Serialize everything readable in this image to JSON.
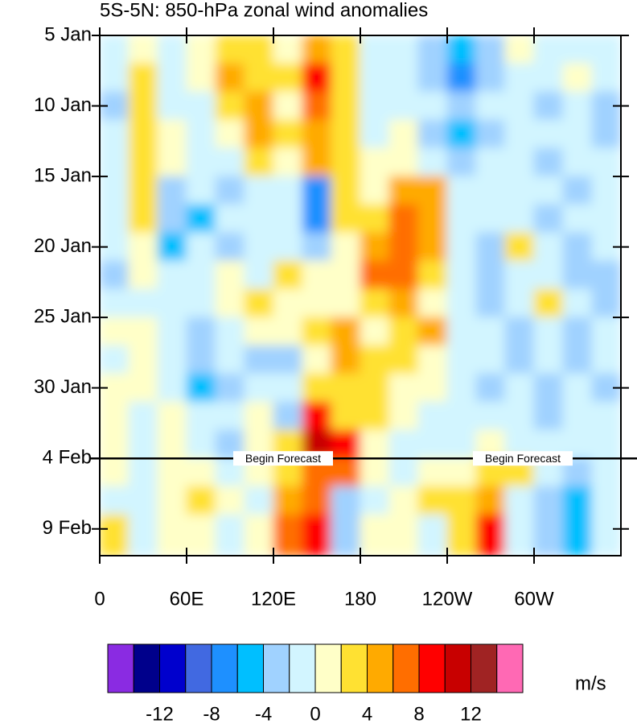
{
  "chart_data": {
    "type": "heatmap",
    "title": "5S-5N: 850-hPa zonal wind anomalies",
    "xlim": [
      0,
      360
    ],
    "xticks": [
      0,
      {
        "value": 60,
        "label": "60E"
      },
      {
        "value": 120,
        "label": "120E"
      },
      {
        "value": 180,
        "label": "180"
      },
      {
        "value": 240,
        "label": "120W"
      },
      {
        "value": 300,
        "label": "60W"
      }
    ],
    "ylim": [
      5,
      41.9
    ],
    "yticks": [
      {
        "value": 5,
        "label": "5 Jan"
      },
      {
        "value": 10,
        "label": "10 Jan"
      },
      {
        "value": 15,
        "label": "15 Jan"
      },
      {
        "value": 20,
        "label": "20 Jan"
      },
      {
        "value": 25,
        "label": "25 Jan"
      },
      {
        "value": 30,
        "label": "30 Jan"
      },
      {
        "value": 35,
        "label": "4 Feb"
      },
      {
        "value": 40,
        "label": "9 Feb"
      }
    ],
    "x_edges": [
      0,
      20,
      40,
      60,
      80,
      100,
      120,
      140,
      160,
      180,
      200,
      220,
      240,
      260,
      280,
      300,
      320,
      340,
      360
    ],
    "y_edges": [
      5,
      7,
      9,
      11,
      13,
      15,
      17,
      19,
      21,
      23,
      25,
      27,
      29,
      31,
      33,
      35,
      37,
      39,
      41.9
    ],
    "z": [
      [
        -1,
        1,
        -1,
        1,
        3,
        3,
        1,
        5,
        3,
        -1,
        -1,
        -3,
        -5,
        -3,
        1,
        -1,
        -1,
        -1
      ],
      [
        -1,
        3,
        -1,
        1,
        5,
        3,
        3,
        9,
        3,
        -1,
        -1,
        -3,
        -7,
        -3,
        -1,
        -1,
        1,
        -1
      ],
      [
        -3,
        3,
        -1,
        -1,
        3,
        5,
        1,
        7,
        3,
        -1,
        -1,
        -1,
        -3,
        -1,
        -1,
        -3,
        -1,
        -3
      ],
      [
        -1,
        3,
        1,
        -1,
        1,
        5,
        3,
        5,
        3,
        -1,
        1,
        -3,
        -5,
        -3,
        -1,
        -1,
        -1,
        -3
      ],
      [
        -1,
        3,
        1,
        -1,
        -1,
        3,
        1,
        5,
        3,
        1,
        1,
        -1,
        -3,
        -1,
        -1,
        -3,
        -1,
        -1
      ],
      [
        -1,
        3,
        -3,
        -1,
        -3,
        -1,
        -1,
        -7,
        3,
        1,
        5,
        5,
        -1,
        -1,
        -1,
        -1,
        -3,
        -1
      ],
      [
        -1,
        3,
        -3,
        -5,
        -1,
        -1,
        -1,
        -7,
        3,
        3,
        7,
        5,
        -1,
        -1,
        -1,
        -3,
        -1,
        -1
      ],
      [
        -1,
        1,
        -5,
        -1,
        -3,
        -1,
        -1,
        -3,
        1,
        5,
        7,
        5,
        -1,
        -3,
        3,
        -1,
        -3,
        -1
      ],
      [
        -3,
        1,
        -1,
        -1,
        1,
        -1,
        3,
        1,
        1,
        7,
        7,
        3,
        -1,
        -3,
        -1,
        -1,
        -3,
        -3
      ],
      [
        -1,
        -1,
        -1,
        -1,
        1,
        3,
        1,
        1,
        1,
        3,
        5,
        1,
        -1,
        -3,
        -1,
        3,
        -1,
        -3
      ],
      [
        1,
        1,
        -1,
        -3,
        -1,
        1,
        1,
        3,
        5,
        1,
        3,
        5,
        -1,
        -1,
        -3,
        -1,
        -3,
        -1
      ],
      [
        -1,
        1,
        -1,
        -3,
        -1,
        -3,
        -3,
        1,
        5,
        3,
        3,
        1,
        -1,
        -1,
        -3,
        -1,
        -3,
        -1
      ],
      [
        1,
        1,
        -1,
        -5,
        -3,
        -1,
        -1,
        3,
        3,
        3,
        1,
        1,
        -1,
        -3,
        -1,
        -3,
        -1,
        -3
      ],
      [
        1,
        -1,
        1,
        -1,
        -1,
        1,
        -3,
        9,
        3,
        3,
        1,
        -1,
        -1,
        -1,
        -1,
        -3,
        -1,
        -1
      ],
      [
        1,
        -1,
        1,
        -1,
        -3,
        1,
        3,
        11,
        9,
        1,
        -1,
        -1,
        -1,
        1,
        -1,
        -1,
        -1,
        -1
      ],
      [
        1,
        -1,
        1,
        1,
        -1,
        1,
        3,
        7,
        7,
        1,
        -1,
        1,
        1,
        3,
        3,
        -1,
        -3,
        -1
      ],
      [
        -1,
        -1,
        1,
        3,
        1,
        -1,
        5,
        7,
        -3,
        -1,
        1,
        3,
        3,
        5,
        -1,
        -3,
        -5,
        -1
      ],
      [
        3,
        -1,
        1,
        1,
        -1,
        1,
        7,
        9,
        -3,
        1,
        1,
        -1,
        3,
        9,
        -1,
        -3,
        -5,
        -1
      ]
    ],
    "levels": [
      -14,
      -12,
      -10,
      -8,
      -6,
      -4,
      -2,
      0,
      2,
      4,
      6,
      8,
      10,
      12,
      14
    ],
    "colors": [
      "#8a2be2",
      "#00008b",
      "#0000cd",
      "#4169e1",
      "#1e90ff",
      "#00bfff",
      "#a0d2ff",
      "#d2f5ff",
      "#ffffc8",
      "#ffe132",
      "#ffaa00",
      "#ff6e00",
      "#ff0000",
      "#c80000",
      "#a02323",
      "#ff69b4"
    ],
    "colorbar_ticks": [
      -12,
      -8,
      -4,
      0,
      4,
      8,
      12
    ],
    "units": "m/s",
    "forecast_start": 35,
    "forecast_label": "Begin Forecast"
  }
}
